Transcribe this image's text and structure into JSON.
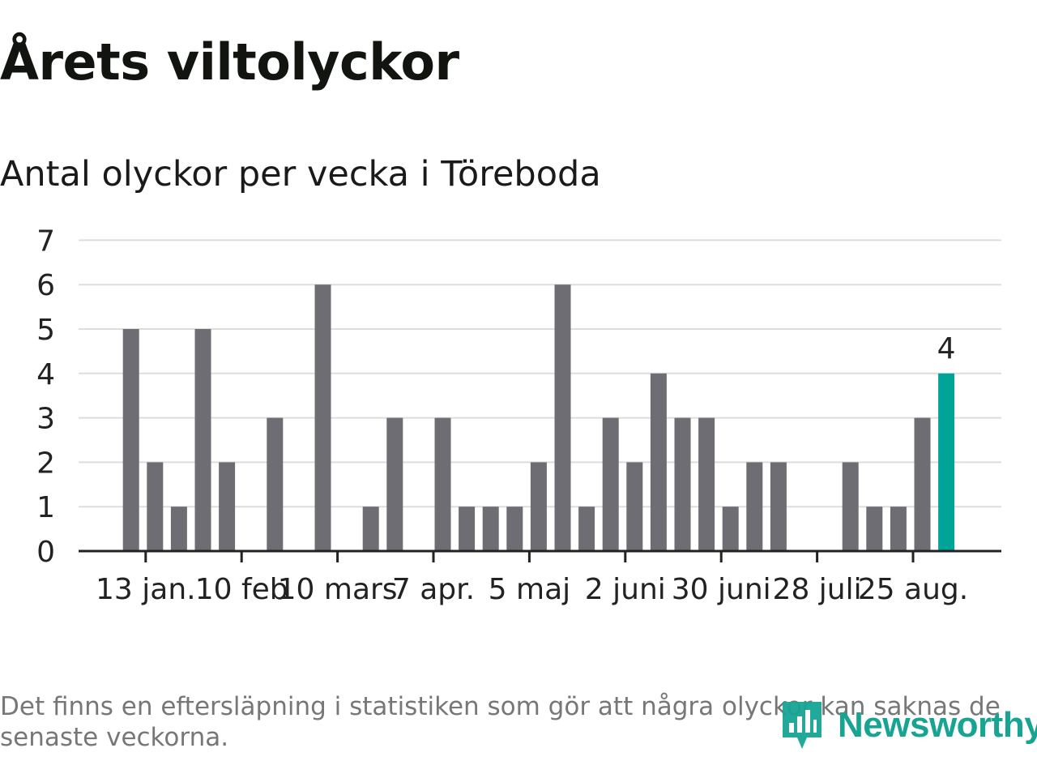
{
  "title": "Årets viltolyckor",
  "subtitle": "Antal olyckor per vecka i Töreboda",
  "footnote": "Det finns en eftersläpning i statistiken som gör att några olyckor kan saknas de senaste veckorna.",
  "brand": {
    "name": "Newsworthy",
    "logo_icon": "bar-chart-logo-icon",
    "color": "#17a493"
  },
  "colors": {
    "bar": "#6e6d73",
    "highlight": "#00a398",
    "grid": "#dddddd",
    "axis": "#222222"
  },
  "chart_data": {
    "type": "bar",
    "ylim": [
      0,
      7
    ],
    "yticks": [
      0,
      1,
      2,
      3,
      4,
      5,
      6,
      7
    ],
    "grid": true,
    "values": [
      null,
      null,
      5,
      2,
      1,
      5,
      2,
      null,
      3,
      null,
      6,
      null,
      1,
      3,
      null,
      3,
      1,
      1,
      1,
      2,
      6,
      1,
      3,
      2,
      4,
      3,
      3,
      1,
      2,
      2,
      null,
      null,
      2,
      1,
      1,
      3,
      4
    ],
    "highlight_index": 36,
    "highlight_label": "4",
    "xtick_labels": [
      {
        "index": 3,
        "label": "13 jan."
      },
      {
        "index": 7,
        "label": "10 feb"
      },
      {
        "index": 11,
        "label": "10 mars"
      },
      {
        "index": 15,
        "label": "7 apr."
      },
      {
        "index": 19,
        "label": "5 maj"
      },
      {
        "index": 23,
        "label": "2 juni"
      },
      {
        "index": 27,
        "label": "30 juni"
      },
      {
        "index": 31,
        "label": "28 juli"
      },
      {
        "index": 35,
        "label": "25 aug."
      }
    ]
  }
}
